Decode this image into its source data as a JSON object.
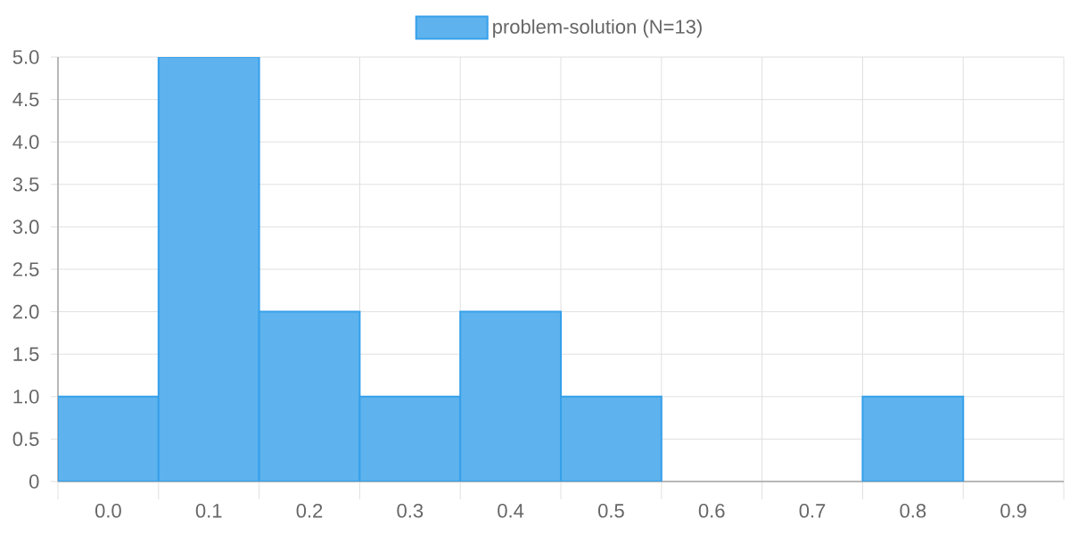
{
  "chart_data": {
    "type": "bar",
    "categories": [
      "0.0",
      "0.1",
      "0.2",
      "0.3",
      "0.4",
      "0.5",
      "0.6",
      "0.7",
      "0.8",
      "0.9"
    ],
    "series": [
      {
        "name": "problem-solution (N=13)",
        "color": "#5eb3ee",
        "values": [
          1,
          5,
          2,
          1,
          2,
          1,
          0,
          0,
          1,
          0
        ]
      }
    ],
    "ylim": [
      0,
      5
    ],
    "yticks": [
      0,
      0.5,
      {
        "value": 1,
        "label": "1.0"
      },
      1.5,
      {
        "value": 2,
        "label": "2.0"
      },
      2.5,
      {
        "value": 3,
        "label": "3.0"
      },
      3.5,
      {
        "value": 4,
        "label": "4.0"
      },
      4.5,
      {
        "value": 5,
        "label": "5.0"
      }
    ],
    "grid": true,
    "legend": "top"
  }
}
